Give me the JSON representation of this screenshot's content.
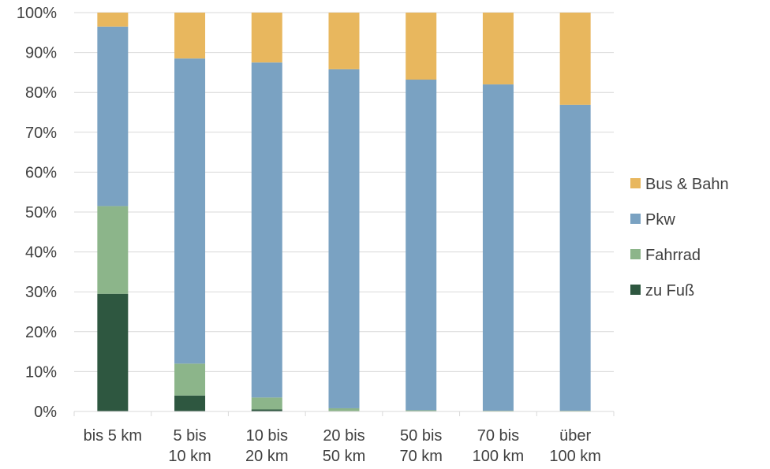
{
  "chart_data": {
    "type": "bar",
    "stacked": true,
    "percent_stacked": true,
    "categories": [
      [
        "bis 5 km"
      ],
      [
        "5 bis",
        "10 km"
      ],
      [
        "10 bis",
        "20 km"
      ],
      [
        "20 bis",
        "50 km"
      ],
      [
        "50 bis",
        "70 km"
      ],
      [
        "70 bis",
        "100 km"
      ],
      [
        "über",
        "100 km"
      ]
    ],
    "series": [
      {
        "name": "zu Fuß",
        "color": "#2e5740",
        "values": [
          29.5,
          4.0,
          0.5,
          0.1,
          0.0,
          0.0,
          0.0
        ]
      },
      {
        "name": "Fahrrad",
        "color": "#8cb58a",
        "values": [
          22.0,
          8.0,
          3.0,
          0.7,
          0.3,
          0.2,
          0.2
        ]
      },
      {
        "name": "Pkw",
        "color": "#7aa2c2",
        "values": [
          45.0,
          76.5,
          84.0,
          85.0,
          82.9,
          81.8,
          76.7
        ]
      },
      {
        "name": "Bus & Bahn",
        "color": "#e8b75e",
        "values": [
          3.5,
          11.5,
          12.5,
          14.2,
          16.8,
          18.0,
          23.1
        ]
      }
    ],
    "yticks": [
      "0%",
      "10%",
      "20%",
      "30%",
      "40%",
      "50%",
      "60%",
      "70%",
      "80%",
      "90%",
      "100%"
    ],
    "ylim": [
      0,
      100
    ],
    "grid": true,
    "legend_position": "right",
    "legend_order": [
      "Bus & Bahn",
      "Pkw",
      "Fahrrad",
      "zu Fuß"
    ],
    "title": "",
    "xlabel": "",
    "ylabel": ""
  }
}
